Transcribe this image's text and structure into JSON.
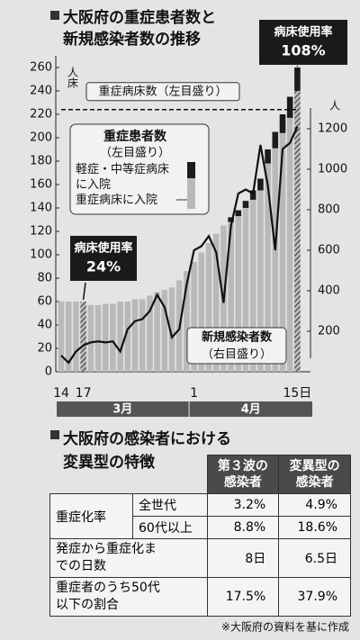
{
  "chart_data": {
    "type": "bar",
    "title": [
      "大阪府の重症患者数と",
      "新規感染者数の推移"
    ],
    "ylabel": "人床",
    "y2label": "人",
    "categories": [
      "14",
      null,
      null,
      "17",
      null,
      null,
      null,
      null,
      null,
      null,
      null,
      null,
      null,
      null,
      null,
      null,
      null,
      null,
      "1",
      null,
      null,
      null,
      null,
      null,
      null,
      null,
      null,
      null,
      null,
      null,
      null,
      null,
      "15日"
    ],
    "months": [
      {
        "label": "3月",
        "start": 0
      },
      {
        "label": "4月",
        "start": 18
      }
    ],
    "series": [
      {
        "name": "重症病床に入院",
        "type": "bar",
        "color": "#b9b9b9",
        "values": [
          60,
          60,
          60,
          60,
          57,
          57,
          58,
          58,
          60,
          60,
          62,
          62,
          65,
          68,
          70,
          72,
          78,
          86,
          94,
          102,
          110,
          118,
          125,
          128,
          133,
          140,
          147,
          155,
          178,
          191,
          204,
          217,
          240
        ]
      },
      {
        "name": "軽症・中等症病床に入院",
        "type": "bar",
        "color": "#1c1c1c",
        "values": [
          0,
          0,
          0,
          0,
          0,
          0,
          0,
          0,
          0,
          0,
          0,
          0,
          0,
          0,
          0,
          0,
          0,
          0,
          0,
          0,
          0,
          0,
          0,
          4,
          5,
          6,
          8,
          10,
          12,
          14,
          16,
          18,
          20
        ]
      },
      {
        "name": "重症病床数（左目盛り）",
        "type": "line",
        "dashed": true,
        "color": "#111111",
        "values": [
          224,
          224,
          224,
          224,
          224,
          224,
          224,
          224,
          224,
          224,
          224,
          224,
          224,
          224,
          224,
          224,
          224,
          224,
          224,
          224,
          224,
          224,
          224,
          224,
          224,
          224,
          224,
          224,
          224,
          224,
          224,
          224,
          224
        ]
      },
      {
        "name": "新規感染者数",
        "note": "（右目盛り）",
        "type": "line",
        "axis": "y2",
        "color": "#111111",
        "values": [
          80,
          45,
          100,
          130,
          145,
          150,
          145,
          150,
          100,
          210,
          250,
          260,
          300,
          380,
          320,
          170,
          210,
          430,
          600,
          620,
          670,
          590,
          340,
          720,
          880,
          900,
          880,
          1120,
          920,
          600,
          1100,
          1130,
          1210
        ]
      }
    ],
    "legend_title": "重症患者数",
    "legend_note": "（左目盛り）",
    "annotations": [
      {
        "label": "病床使用率",
        "text": "24%",
        "category_index": 3
      },
      {
        "label": "病床使用率",
        "text": "108%",
        "category_index": 32
      }
    ],
    "ylim": [
      0,
      270
    ],
    "yticks": [
      0,
      20,
      40,
      60,
      80,
      100,
      120,
      140,
      160,
      180,
      200,
      220,
      240,
      260
    ],
    "y2lim": [
      0,
      1560
    ],
    "y2ticks": [
      200,
      400,
      600,
      800,
      1000,
      1200
    ],
    "grid": false
  },
  "table": {
    "title": [
      "大阪府の感染者における",
      "変異型の特徴"
    ],
    "columns": [
      "第３波の感染者",
      "変異型の感染者"
    ],
    "rows": [
      {
        "label": "重症化率",
        "items": [
          {
            "label": "全世代",
            "cells": [
              "3.2%",
              "4.9%"
            ]
          },
          {
            "label": "60代以上",
            "cells": [
              "8.8%",
              "18.6%"
            ]
          }
        ]
      },
      {
        "label": "発症から重症化までの日数",
        "cells": [
          "8日",
          "6.5日"
        ]
      },
      {
        "label": "重症者のうち50代以下の割合",
        "cells": [
          "17.5%",
          "37.9%"
        ]
      }
    ],
    "note": "※大阪府の資料を基に作成"
  }
}
